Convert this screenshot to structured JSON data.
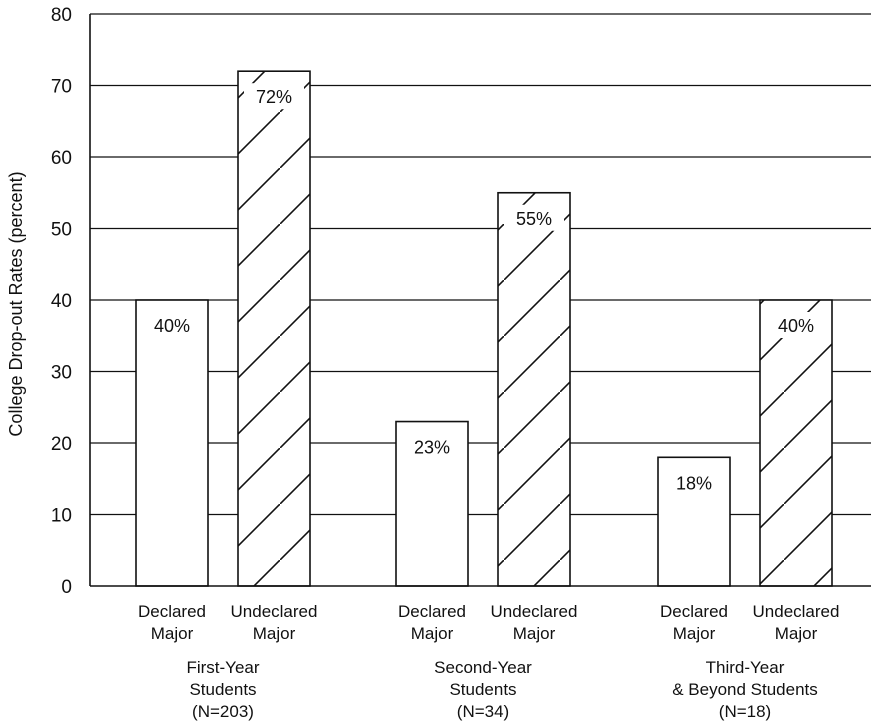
{
  "chart_data": {
    "type": "bar",
    "title": "",
    "ylabel": "College Drop-out Rates (percent)",
    "ylim": [
      0,
      80
    ],
    "yticks": [
      0,
      10,
      20,
      30,
      40,
      50,
      60,
      70,
      80
    ],
    "grid": true,
    "groups": [
      {
        "label_lines": [
          "First-Year",
          "Students",
          "(N=203)"
        ],
        "bars": [
          {
            "category_lines": [
              "Declared",
              "Major"
            ],
            "value": 40,
            "label": "40%",
            "pattern": "plain"
          },
          {
            "category_lines": [
              "Undeclared",
              "Major"
            ],
            "value": 72,
            "label": "72%",
            "pattern": "hatched"
          }
        ]
      },
      {
        "label_lines": [
          "Second-Year",
          "Students",
          "(N=34)"
        ],
        "bars": [
          {
            "category_lines": [
              "Declared",
              "Major"
            ],
            "value": 23,
            "label": "23%",
            "pattern": "plain"
          },
          {
            "category_lines": [
              "Undeclared",
              "Major"
            ],
            "value": 55,
            "label": "55%",
            "pattern": "hatched"
          }
        ]
      },
      {
        "label_lines": [
          "Third-Year",
          "& Beyond Students",
          "(N=18)"
        ],
        "bars": [
          {
            "category_lines": [
              "Declared",
              "Major"
            ],
            "value": 18,
            "label": "18%",
            "pattern": "plain"
          },
          {
            "category_lines": [
              "Undeclared",
              "Major"
            ],
            "value": 40,
            "label": "40%",
            "pattern": "hatched"
          }
        ]
      }
    ]
  }
}
